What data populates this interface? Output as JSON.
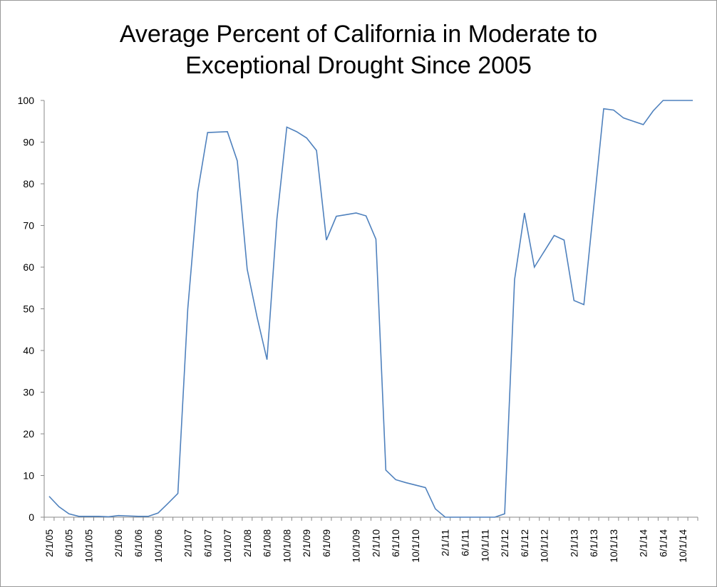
{
  "chart_data": {
    "type": "line",
    "title": "Average Percent of California in Moderate to Exceptional Drought Since 2005",
    "categories": [
      "2/1/05",
      null,
      "6/1/05",
      null,
      "10/1/05",
      null,
      null,
      "2/1/06",
      null,
      "6/1/06",
      null,
      "10/1/06",
      null,
      null,
      "2/1/07",
      null,
      "6/1/07",
      null,
      "10/1/07",
      null,
      "2/1/08",
      null,
      "6/1/08",
      null,
      "10/1/08",
      null,
      "2/1/09",
      null,
      "6/1/09",
      null,
      null,
      "10/1/09",
      null,
      "2/1/10",
      null,
      "6/1/10",
      null,
      "10/1/10",
      null,
      null,
      "2/1/11",
      null,
      "6/1/11",
      null,
      "10/1/11",
      null,
      "2/1/12",
      null,
      "6/1/12",
      null,
      "10/1/12",
      null,
      null,
      "2/1/13",
      null,
      "6/1/13",
      null,
      "10/1/13",
      null,
      null,
      "2/1/14",
      null,
      "6/1/14",
      null,
      "10/1/14",
      null
    ],
    "series": [
      {
        "color": "#4f81bd",
        "values": [
          5,
          2.5,
          0.8,
          0.2,
          0.2,
          0.2,
          0.1,
          0.4,
          0.3,
          0.2,
          0.2,
          1,
          3.3,
          5.7,
          50,
          78,
          92.3,
          92.4,
          92.5,
          85.5,
          59.5,
          48,
          37.8,
          71.5,
          93.6,
          92.5,
          91,
          88,
          66.5,
          72.2,
          72.6,
          73,
          72.3,
          66.7,
          11.3,
          9,
          8.3,
          7.7,
          7.1,
          2,
          0,
          0,
          0,
          0,
          0,
          0,
          0.8,
          57,
          73,
          60,
          63.8,
          67.6,
          66.5,
          52,
          51,
          74.5,
          98,
          97.7,
          95.8,
          95,
          94.2,
          97.5,
          100,
          100,
          100,
          100
        ]
      }
    ],
    "ylim": [
      0,
      100
    ],
    "yticks": [
      0,
      10,
      20,
      30,
      40,
      50,
      60,
      70,
      80,
      90,
      100
    ]
  }
}
